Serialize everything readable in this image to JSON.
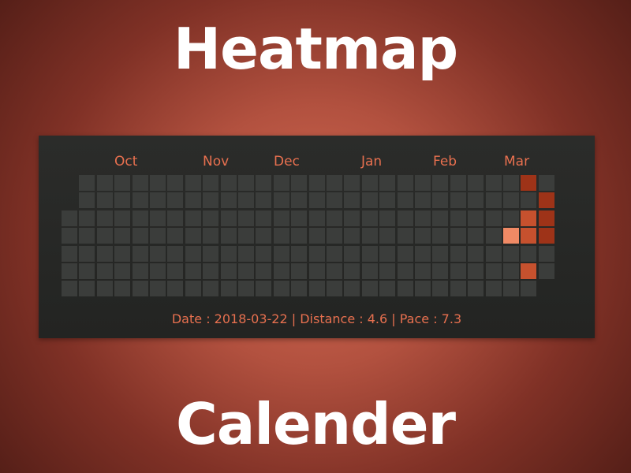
{
  "title_top": "Heatmap",
  "title_bottom": "Calender",
  "colors": {
    "background_center": "#d36a53",
    "background_edge": "#4a1a14",
    "panel": "#272826",
    "empty_cell": "#3b3d3b",
    "accent_text": "#e8704f",
    "level_1": "#f08a65",
    "level_2": "#c6512e",
    "level_3": "#9e3318"
  },
  "heatmap": {
    "months": [
      "Oct",
      "Nov",
      "Dec",
      "Jan",
      "Feb",
      "Mar"
    ],
    "week_count": 28,
    "days_per_week": 7,
    "active_days": [
      {
        "week": 26,
        "day": 0,
        "level": 3
      },
      {
        "week": 27,
        "day": 1,
        "level": 3
      },
      {
        "week": 26,
        "day": 2,
        "level": 2
      },
      {
        "week": 27,
        "day": 2,
        "level": 3
      },
      {
        "week": 25,
        "day": 3,
        "level": 1
      },
      {
        "week": 26,
        "day": 3,
        "level": 2
      },
      {
        "week": 27,
        "day": 3,
        "level": 3
      },
      {
        "week": 26,
        "day": 5,
        "level": 2
      }
    ]
  },
  "status": {
    "text": "Date : 2018-03-22 | Distance : 4.6 | Pace : 7.3"
  }
}
